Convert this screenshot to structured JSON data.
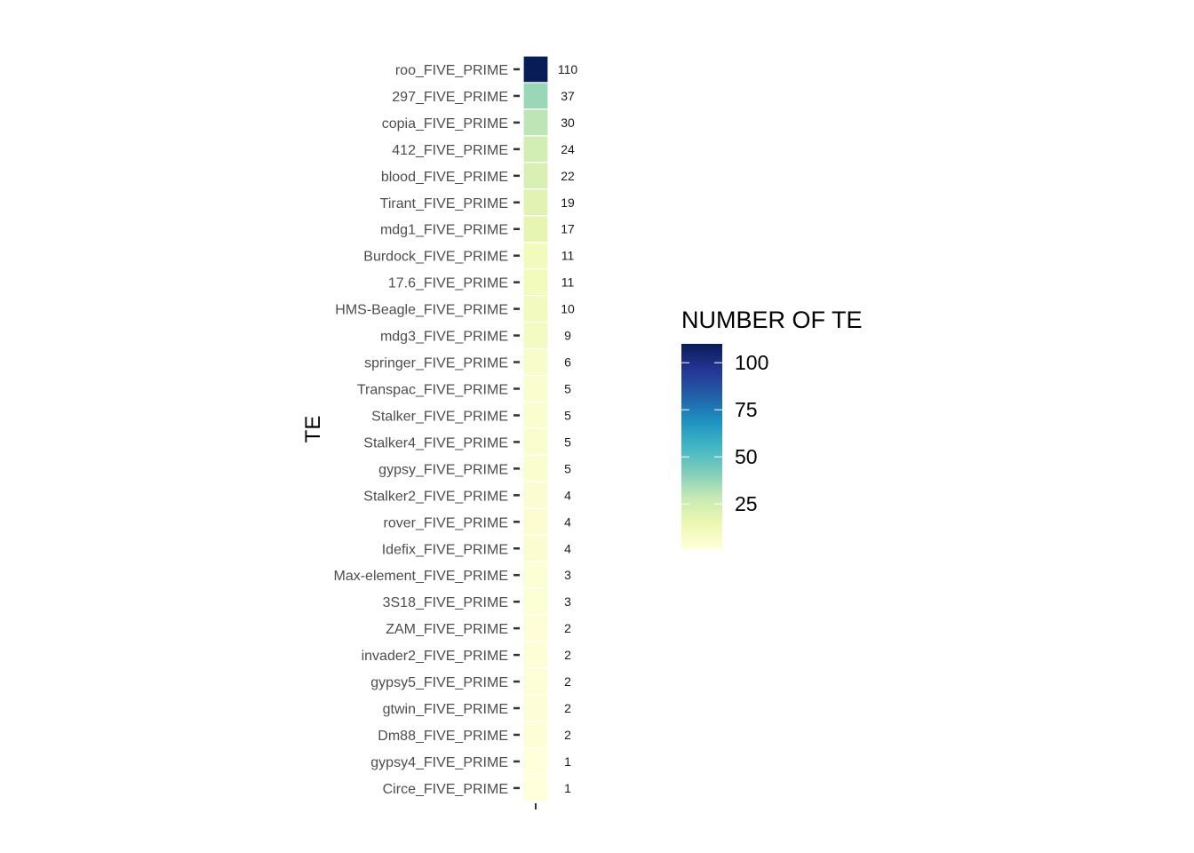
{
  "chart_data": {
    "type": "heatmap",
    "ylabel": "TE",
    "xlabel": "",
    "legend_title": "NUMBER OF TE",
    "legend_placement": "right",
    "legend_breaks": [
      25,
      50,
      75,
      100
    ],
    "legend_range": [
      1,
      110
    ],
    "grid": false,
    "palette": [
      "#ffffd9",
      "#edf8b1",
      "#c7e9b4",
      "#7fcdbb",
      "#41b6c4",
      "#1d91c0",
      "#225ea8",
      "#253494",
      "#081d58"
    ],
    "rows": [
      {
        "label": "roo_FIVE_PRIME",
        "value": 110
      },
      {
        "label": "297_FIVE_PRIME",
        "value": 37
      },
      {
        "label": "copia_FIVE_PRIME",
        "value": 30
      },
      {
        "label": "412_FIVE_PRIME",
        "value": 24
      },
      {
        "label": "blood_FIVE_PRIME",
        "value": 22
      },
      {
        "label": "Tirant_FIVE_PRIME",
        "value": 19
      },
      {
        "label": "mdg1_FIVE_PRIME",
        "value": 17
      },
      {
        "label": "Burdock_FIVE_PRIME",
        "value": 11
      },
      {
        "label": "17.6_FIVE_PRIME",
        "value": 11
      },
      {
        "label": "HMS-Beagle_FIVE_PRIME",
        "value": 10
      },
      {
        "label": "mdg3_FIVE_PRIME",
        "value": 9
      },
      {
        "label": "springer_FIVE_PRIME",
        "value": 6
      },
      {
        "label": "Transpac_FIVE_PRIME",
        "value": 5
      },
      {
        "label": "Stalker_FIVE_PRIME",
        "value": 5
      },
      {
        "label": "Stalker4_FIVE_PRIME",
        "value": 5
      },
      {
        "label": "gypsy_FIVE_PRIME",
        "value": 5
      },
      {
        "label": "Stalker2_FIVE_PRIME",
        "value": 4
      },
      {
        "label": "rover_FIVE_PRIME",
        "value": 4
      },
      {
        "label": "Idefix_FIVE_PRIME",
        "value": 4
      },
      {
        "label": "Max-element_FIVE_PRIME",
        "value": 3
      },
      {
        "label": "3S18_FIVE_PRIME",
        "value": 3
      },
      {
        "label": "ZAM_FIVE_PRIME",
        "value": 2
      },
      {
        "label": "invader2_FIVE_PRIME",
        "value": 2
      },
      {
        "label": "gypsy5_FIVE_PRIME",
        "value": 2
      },
      {
        "label": "gtwin_FIVE_PRIME",
        "value": 2
      },
      {
        "label": "Dm88_FIVE_PRIME",
        "value": 2
      },
      {
        "label": "gypsy4_FIVE_PRIME",
        "value": 1
      },
      {
        "label": "Circe_FIVE_PRIME",
        "value": 1
      }
    ]
  }
}
